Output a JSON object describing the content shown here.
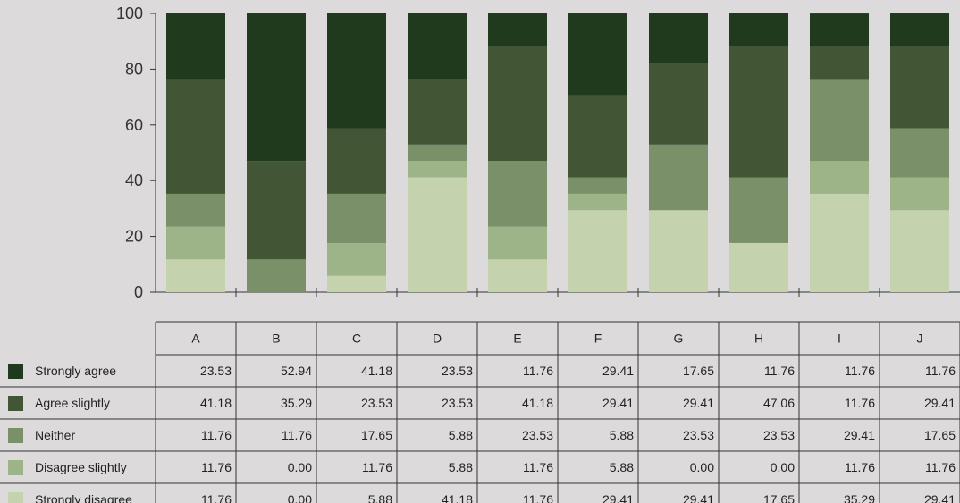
{
  "chart_data": {
    "type": "bar",
    "stacked": true,
    "categories": [
      "A",
      "B",
      "C",
      "D",
      "E",
      "F",
      "G",
      "H",
      "I",
      "J"
    ],
    "ylim": [
      0,
      100
    ],
    "yticks": [
      "0",
      "20",
      "40",
      "60",
      "80",
      "100"
    ],
    "series": [
      {
        "name": "Strongly agree",
        "color": "#1f3a1c",
        "values": [
          23.53,
          52.94,
          41.18,
          23.53,
          11.76,
          29.41,
          17.65,
          11.76,
          11.76,
          11.76
        ],
        "labels": [
          "23.53",
          "52.94",
          "41.18",
          "23.53",
          "11.76",
          "29.41",
          "17.65",
          "11.76",
          "11.76",
          "11.76"
        ]
      },
      {
        "name": "Agree slightly",
        "color": "#425636",
        "values": [
          41.18,
          35.29,
          23.53,
          23.53,
          41.18,
          29.41,
          29.41,
          47.06,
          11.76,
          29.41
        ],
        "labels": [
          "41.18",
          "35.29",
          "23.53",
          "23.53",
          "41.18",
          "29.41",
          "29.41",
          "47.06",
          "11.76",
          "29.41"
        ]
      },
      {
        "name": "Neither",
        "color": "#7a9068",
        "values": [
          11.76,
          11.76,
          17.65,
          5.88,
          23.53,
          5.88,
          23.53,
          23.53,
          29.41,
          17.65
        ],
        "labels": [
          "11.76",
          "11.76",
          "17.65",
          "5.88",
          "23.53",
          "5.88",
          "23.53",
          "23.53",
          "29.41",
          "17.65"
        ]
      },
      {
        "name": "Disagree slightly",
        "color": "#9db388",
        "values": [
          11.76,
          0.0,
          11.76,
          5.88,
          11.76,
          5.88,
          0.0,
          0.0,
          11.76,
          11.76
        ],
        "labels": [
          "11.76",
          "0.00",
          "11.76",
          "5.88",
          "11.76",
          "5.88",
          "0.00",
          "0.00",
          "11.76",
          "11.76"
        ]
      },
      {
        "name": "Strongly disagree",
        "color": "#c4d2ae",
        "values": [
          11.76,
          0.0,
          5.88,
          41.18,
          11.76,
          29.41,
          29.41,
          17.65,
          35.29,
          29.41
        ],
        "labels": [
          "11.76",
          "0.00",
          "5.88",
          "41.18",
          "11.76",
          "29.41",
          "29.41",
          "17.65",
          "35.29",
          "29.41"
        ]
      }
    ],
    "legend_placement": "left-of-table",
    "grid": false
  }
}
